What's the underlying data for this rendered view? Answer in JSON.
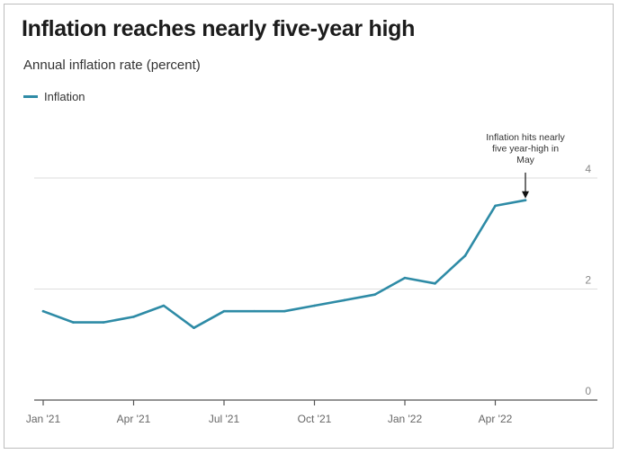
{
  "chart_data": {
    "type": "line",
    "title": "Inflation reaches nearly five-year high",
    "subtitle": "Annual inflation rate (percent)",
    "legend": "top-left",
    "colors": {
      "series": "#2e8ba6",
      "grid": "#dddddd",
      "axis": "#555555"
    },
    "x": [
      "2021-01",
      "2021-02",
      "2021-03",
      "2021-04",
      "2021-05",
      "2021-06",
      "2021-07",
      "2021-08",
      "2021-09",
      "2021-10",
      "2021-11",
      "2021-12",
      "2022-01",
      "2022-02",
      "2022-03",
      "2022-04",
      "2022-05"
    ],
    "x_ticks": [
      {
        "at": "2021-01",
        "label": "Jan '21"
      },
      {
        "at": "2021-04",
        "label": "Apr '21"
      },
      {
        "at": "2021-07",
        "label": "Jul '21"
      },
      {
        "at": "2021-10",
        "label": "Oct '21"
      },
      {
        "at": "2022-01",
        "label": "Jan '22"
      },
      {
        "at": "2022-04",
        "label": "Apr '22"
      }
    ],
    "xlim": [
      "2021-01",
      "2022-08"
    ],
    "y_ticks": [
      0,
      2,
      4
    ],
    "ylim": [
      0,
      4
    ],
    "grid": true,
    "series": [
      {
        "name": "Inflation",
        "values": [
          1.6,
          1.4,
          1.4,
          1.5,
          1.7,
          1.3,
          1.6,
          1.6,
          1.6,
          1.7,
          1.8,
          1.9,
          2.2,
          2.1,
          2.6,
          3.5,
          3.6
        ]
      }
    ],
    "annotation": {
      "at": "2022-05",
      "value": 3.6,
      "lines": [
        "Inflation hits nearly",
        "five year-high in",
        "May"
      ]
    }
  }
}
